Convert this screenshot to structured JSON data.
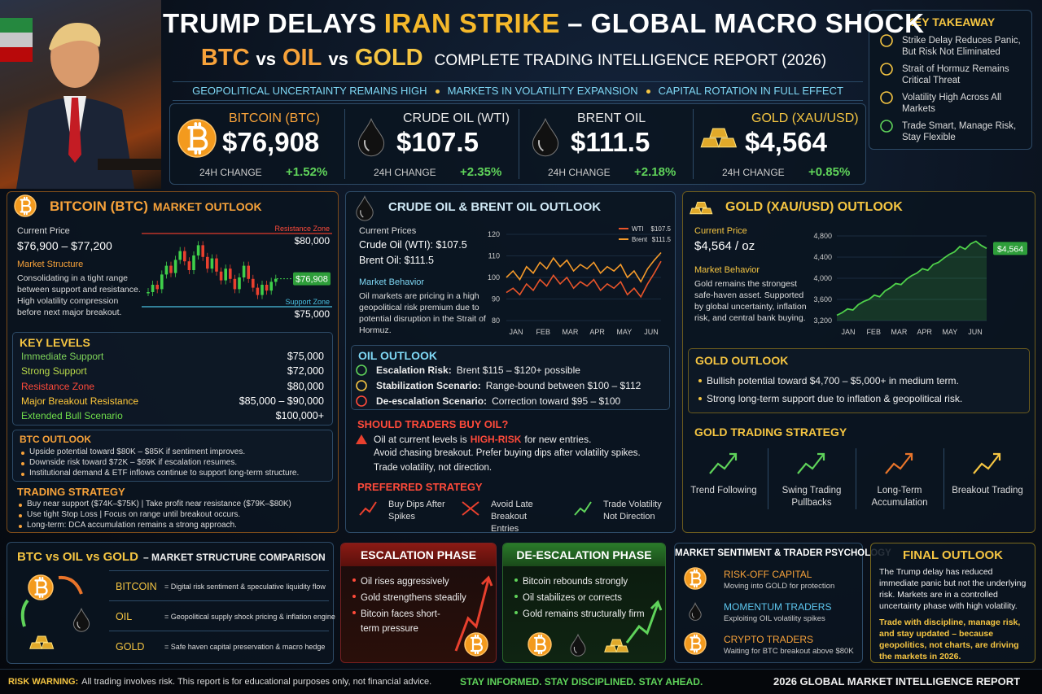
{
  "header": {
    "title": {
      "a": "TRUMP DELAYS",
      "b": "IRAN STRIKE",
      "c": "– GLOBAL MACRO SHOCK"
    },
    "subtitle": {
      "btc": "BTC",
      "vs1": "vs",
      "oil": "OIL",
      "vs2": "vs",
      "gold": "GOLD",
      "rest": "COMPLETE TRADING INTELLIGENCE REPORT (2026)"
    },
    "tagline": [
      "GEOPOLITICAL UNCERTAINTY REMAINS HIGH",
      "MARKETS IN VOLATILITY EXPANSION",
      "CAPITAL ROTATION IN FULL EFFECT"
    ]
  },
  "key_takeaway": {
    "title": "KEY TAKEAWAY",
    "items": [
      "Strike Delay Reduces Panic, But Risk Not Eliminated",
      "Strait of Hormuz Remains Critical Threat",
      "Volatility High Across All Markets",
      "Trade Smart, Manage Risk, Stay Flexible"
    ]
  },
  "tickers": [
    {
      "name": "BITCOIN (BTC)",
      "price": "$76,908",
      "change_label": "24H CHANGE",
      "change": "+1.52%",
      "color": "#f7a23a"
    },
    {
      "name": "CRUDE OIL (WTI)",
      "price": "$107.5",
      "change_label": "24H CHANGE",
      "change": "+2.35%",
      "color": "#e6e6e6"
    },
    {
      "name": "BRENT OIL",
      "price": "$111.5",
      "change_label": "24H CHANGE",
      "change": "+2.18%",
      "color": "#e6e6e6"
    },
    {
      "name": "GOLD (XAU/USD)",
      "price": "$4,564",
      "change_label": "24H CHANGE",
      "change": "+0.85%",
      "color": "#f5c542"
    }
  ],
  "btc_panel": {
    "title": "BITCOIN (BTC)",
    "title_suffix": "MARKET OUTLOOK",
    "current_price_label": "Current Price",
    "current_price": "$76,900 – $77,200",
    "structure_label": "Market Structure",
    "structure_text": "Consolidating in a tight range between support and resistance. High volatility compression before next major breakout.",
    "chart": {
      "resistance": {
        "label": "Resistance Zone",
        "value": 80000,
        "value_label": "$80,000"
      },
      "support": {
        "label": "Support Zone",
        "value": 75000,
        "value_label": "$75,000"
      },
      "closes": [
        76000,
        76500,
        76200,
        77200,
        77800,
        77300,
        78200,
        78800,
        78100,
        77500,
        78500,
        79200,
        78400,
        77600,
        78300,
        77400,
        76800,
        77600,
        76900,
        76200,
        77000,
        77800,
        76900,
        76300,
        75800,
        76500,
        76100,
        76700,
        76908
      ],
      "last_label": "$76,908"
    },
    "key_levels": {
      "title": "KEY LEVELS",
      "rows": [
        {
          "label": "Immediate Support",
          "value": "$75,000",
          "color": "#7fd45a"
        },
        {
          "label": "Strong Support",
          "value": "$72,000",
          "color": "#b9d94a"
        },
        {
          "label": "Resistance Zone",
          "value": "$80,000",
          "color": "#ff4a3a"
        },
        {
          "label": "Major Breakout Resistance",
          "value": "$85,000 – $90,000",
          "color": "#ffc83a"
        },
        {
          "label": "Extended Bull Scenario",
          "value": "$100,000+",
          "color": "#6fdc4a"
        }
      ]
    },
    "outlook": {
      "title": "BTC OUTLOOK",
      "items": [
        "Upside potential toward $80K – $85K if sentiment improves.",
        "Downside risk toward $72K – $69K if escalation resumes.",
        "Institutional demand & ETF inflows continue to support long-term structure."
      ]
    },
    "strategy": {
      "title": "TRADING STRATEGY",
      "items": [
        "Buy near support ($74K–$75K) | Take profit near resistance ($79K–$80K)",
        "Use tight Stop Loss | Focus on range until breakout occurs.",
        "Long-term: DCA accumulation remains a strong approach."
      ]
    }
  },
  "oil_panel": {
    "title": "CRUDE OIL & BRENT OIL OUTLOOK",
    "prices_label": "Current Prices",
    "wti_price": "Crude Oil (WTI): $107.5",
    "brent_price": "Brent Oil: $111.5",
    "behavior_label": "Market Behavior",
    "behavior_text": "Oil markets are pricing in a high geopolitical risk premium due to potential disruption in the Strait of Hormuz.",
    "chart": {
      "categories": [
        "JAN",
        "FEB",
        "MAR",
        "APR",
        "MAY",
        "JUN"
      ],
      "ylim": [
        80,
        120
      ],
      "yticks": [
        80,
        90,
        100,
        110,
        120
      ],
      "series": [
        {
          "name": "WTI",
          "label": "$107.5",
          "color": "#e8542a",
          "values": [
            93,
            95,
            92,
            97,
            94,
            99,
            96,
            101,
            97,
            100,
            95,
            98,
            96,
            99,
            94,
            97,
            95,
            98,
            92,
            95,
            91,
            97,
            102,
            107.5
          ]
        },
        {
          "name": "Brent",
          "label": "$111.5",
          "color": "#f59a2a",
          "values": [
            100,
            103,
            99,
            105,
            102,
            107,
            104,
            109,
            105,
            108,
            103,
            106,
            104,
            107,
            102,
            105,
            103,
            106,
            100,
            103,
            98,
            104,
            108,
            111.5
          ]
        }
      ]
    },
    "outlook": {
      "title": "OIL OUTLOOK",
      "rows": [
        {
          "label": "Escalation Risk:",
          "text": "Brent $115 – $120+ possible",
          "color": "#5fd35a"
        },
        {
          "label": "Stabilization Scenario:",
          "text": "Range-bound between $100 – $112",
          "color": "#f5c542"
        },
        {
          "label": "De-escalation Scenario:",
          "text": "Correction toward $95 – $100",
          "color": "#ff4a3a"
        }
      ]
    },
    "buy_question": {
      "title": "SHOULD TRADERS BUY OIL?",
      "line1_a": "Oil at current levels is",
      "line1_b": "HIGH-RISK",
      "line1_c": "for new entries.",
      "line2": "Avoid chasing breakout. Prefer buying dips after volatility spikes.",
      "line3": "Trade volatility, not direction."
    },
    "preferred": {
      "title": "PREFERRED STRATEGY",
      "items": [
        "Buy Dips After Spikes",
        "Avoid Late Breakout Entries",
        "Trade Volatility Not Direction"
      ]
    }
  },
  "gold_panel": {
    "title": "GOLD (XAU/USD) OUTLOOK",
    "price_label": "Current Price",
    "price": "$4,564 / oz",
    "behavior_label": "Market Behavior",
    "behavior_text": "Gold remains the strongest safe-haven asset. Supported by global uncertainty, inflation risk, and central bank buying.",
    "chart": {
      "categories": [
        "JAN",
        "FEB",
        "MAR",
        "APR",
        "MAY",
        "JUN"
      ],
      "ylim": [
        3200,
        4800
      ],
      "yticks": [
        {
          "value": 3200,
          "label": "3,200"
        },
        {
          "value": 3600,
          "label": "3,600"
        },
        {
          "value": 4000,
          "label": "4,000"
        },
        {
          "value": 4400,
          "label": "4,400"
        },
        {
          "value": 4800,
          "label": "4,800"
        }
      ],
      "color": "#4fd14a",
      "values": [
        3300,
        3350,
        3420,
        3400,
        3500,
        3560,
        3600,
        3680,
        3650,
        3760,
        3820,
        3900,
        3880,
        3980,
        4050,
        4100,
        4180,
        4150,
        4260,
        4300,
        4380,
        4450,
        4500,
        4600,
        4550,
        4650,
        4700,
        4620,
        4564
      ],
      "last_label": "$4,564"
    },
    "outlook": {
      "title": "GOLD OUTLOOK",
      "items": [
        "Bullish potential toward $4,700 – $5,000+ in medium term.",
        "Strong long-term support due to inflation & geopolitical risk."
      ]
    },
    "strategy": {
      "title": "GOLD TRADING STRATEGY",
      "items": [
        "Trend Following",
        "Swing Trading Pullbacks",
        "Long-Term Accumulation",
        "Breakout Trading"
      ]
    }
  },
  "comparison": {
    "title_a": "BTC vs OIL vs GOLD",
    "title_b": "– MARKET STRUCTURE COMPARISON",
    "rows": [
      {
        "label": "BITCOIN",
        "text": "= Digital risk sentiment & speculative liquidity flow"
      },
      {
        "label": "OIL",
        "text": "= Geopolitical supply shock pricing & inflation engine"
      },
      {
        "label": "GOLD",
        "text": "= Safe haven capital preservation & macro hedge"
      }
    ]
  },
  "escalation": {
    "title": "ESCALATION PHASE",
    "items": [
      "Oil rises aggressively",
      "Gold strengthens steadily",
      "Bitcoin faces short-term pressure"
    ]
  },
  "deescalation": {
    "title": "DE-ESCALATION PHASE",
    "items": [
      "Bitcoin rebounds strongly",
      "Oil stabilizes or corrects",
      "Gold remains structurally firm"
    ]
  },
  "sentiment": {
    "title": "MARKET SENTIMENT & TRADER PSYCHOLOGY",
    "groups": [
      {
        "name": "RISK-OFF CAPITAL",
        "text": "Moving into GOLD for protection",
        "color": "#f7a23a"
      },
      {
        "name": "MOMENTUM TRADERS",
        "text": "Exploiting OIL volatility spikes",
        "color": "#5ec8f0"
      },
      {
        "name": "CRYPTO TRADERS",
        "text": "Waiting for BTC breakout above $80K",
        "color": "#f7a23a"
      }
    ]
  },
  "final_outlook": {
    "title": "FINAL OUTLOOK",
    "text": "The Trump delay has reduced immediate panic but not the underlying risk. Markets are in a controlled uncertainty phase with high volatility.",
    "highlight": "Trade with discipline, manage risk, and stay updated – because geopolitics, not charts, are driving the markets in 2026."
  },
  "footer": {
    "warning_label": "RISK WARNING:",
    "warning_text": "All trading involves risk. This report is for educational purposes only, not financial advice.",
    "motto": "STAY INFORMED. STAY DISCIPLINED. STAY AHEAD.",
    "report": "2026 GLOBAL MARKET INTELLIGENCE REPORT"
  }
}
